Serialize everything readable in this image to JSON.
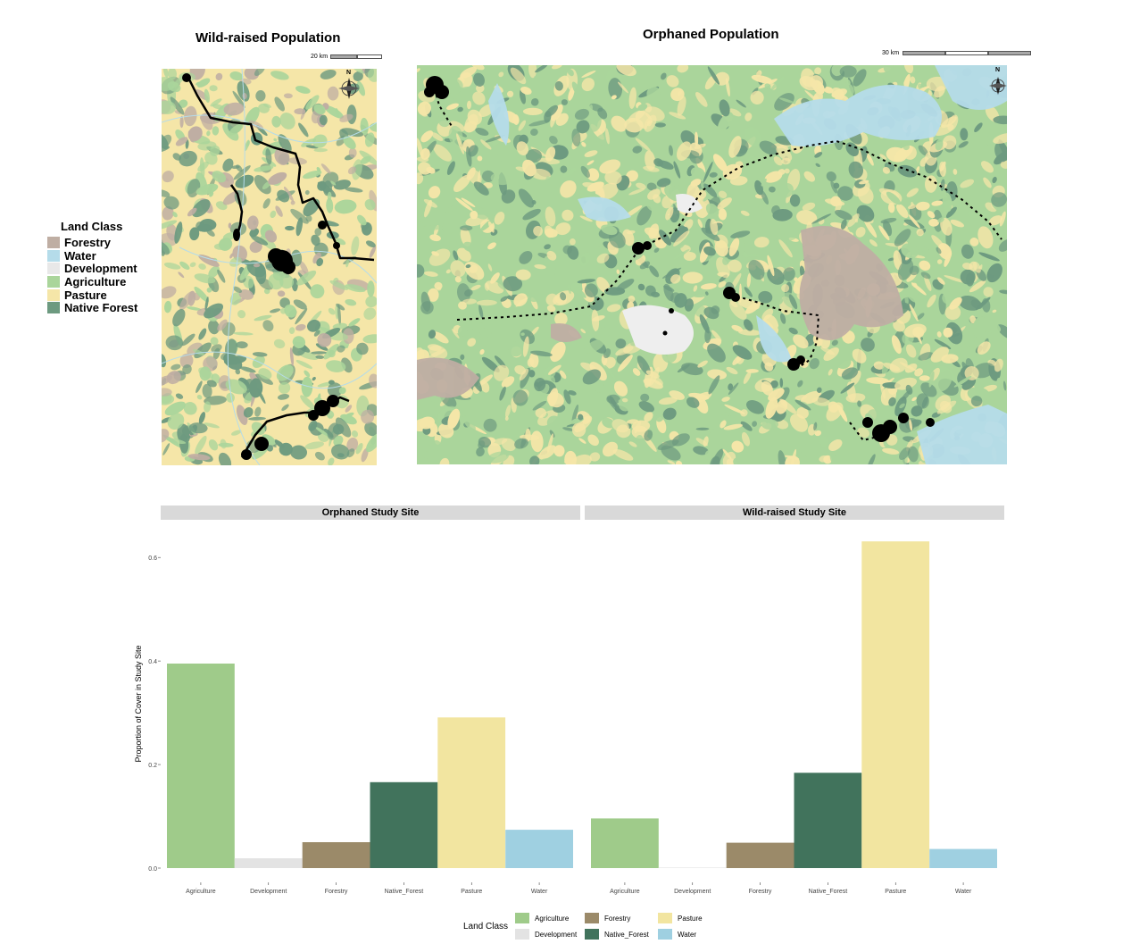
{
  "maps": {
    "wild": {
      "title": "Wild-raised Population",
      "scale_label": "20 km"
    },
    "orphaned": {
      "title": "Orphaned Population",
      "scale_label": "30 km"
    },
    "compass_label": "N"
  },
  "map_legend": {
    "title": "Land Class",
    "items": [
      {
        "label": "Forestry",
        "color": "#bfaea3"
      },
      {
        "label": "Water",
        "color": "#b5dcea"
      },
      {
        "label": "Development",
        "color": "#e8e8e8"
      },
      {
        "label": "Agriculture",
        "color": "#aad59b"
      },
      {
        "label": "Pasture",
        "color": "#f5e6a8"
      },
      {
        "label": "Native Forest",
        "color": "#6d9a80"
      }
    ]
  },
  "colors": {
    "Agriculture": "#9fcb8a",
    "Development": "#e3e3e3",
    "Forestry": "#9b8a69",
    "Native_Forest": "#41735c",
    "Pasture": "#f2e5a0",
    "Water": "#9fd0e1"
  },
  "chart_data": {
    "type": "bar",
    "ylabel": "Proportion of Cover in Study Site",
    "xlabel": "",
    "ylim": [
      0,
      0.64
    ],
    "yticks": [
      0.0,
      0.2,
      0.4,
      0.6
    ],
    "ytick_labels": [
      "0.0",
      "0.2",
      "0.4",
      "0.6"
    ],
    "categories": [
      "Agriculture",
      "Development",
      "Forestry",
      "Native_Forest",
      "Pasture",
      "Water"
    ],
    "facets": [
      {
        "name": "Orphaned Study Site",
        "values": [
          0.395,
          0.019,
          0.05,
          0.166,
          0.291,
          0.074
        ]
      },
      {
        "name": "Wild-raised Study Site",
        "values": [
          0.096,
          0.001,
          0.049,
          0.184,
          0.631,
          0.037
        ]
      }
    ],
    "legend": {
      "title": "Land Class",
      "position": "bottom",
      "items": [
        "Agriculture",
        "Development",
        "Forestry",
        "Native_Forest",
        "Pasture",
        "Water"
      ]
    }
  }
}
